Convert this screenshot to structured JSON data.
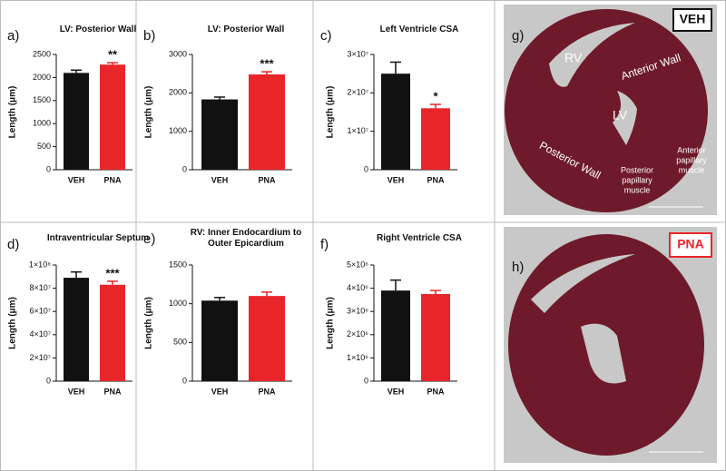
{
  "chart_data": [
    {
      "type": "bar",
      "panel_label": "a)",
      "title": "LV: Posterior Wall",
      "y_label": "Length (μm)",
      "categories": [
        "VEH",
        "PNA"
      ],
      "values": [
        2100,
        2280
      ],
      "errors": [
        60,
        40
      ],
      "colors": [
        "#111111",
        "#e8262a"
      ],
      "value_annotations": [
        null,
        "**"
      ],
      "ylim": [
        0,
        2500
      ],
      "yticks": [
        0,
        500,
        1000,
        1500,
        2000,
        2500
      ]
    },
    {
      "type": "bar",
      "panel_label": "b)",
      "title": "LV: Posterior Wall",
      "y_label": "Length (μm)",
      "categories": [
        "VEH",
        "PNA"
      ],
      "values": [
        1830,
        2480
      ],
      "errors": [
        60,
        70
      ],
      "colors": [
        "#111111",
        "#e8262a"
      ],
      "value_annotations": [
        null,
        "***"
      ],
      "ylim": [
        0,
        3000
      ],
      "yticks": [
        0,
        1000,
        2000,
        3000
      ]
    },
    {
      "type": "bar",
      "panel_label": "c)",
      "title": "Left Ventricle CSA",
      "y_label": "Length (μm)",
      "categories": [
        "VEH",
        "PNA"
      ],
      "values": [
        25000000,
        16000000
      ],
      "errors": [
        3000000,
        1000000
      ],
      "colors": [
        "#111111",
        "#e8262a"
      ],
      "value_annotations": [
        null,
        "*"
      ],
      "ylim": [
        0,
        30000000
      ],
      "yticks": [
        0,
        {
          "value": 10000000,
          "label": "1×10⁷"
        },
        {
          "value": 20000000,
          "label": "2×10⁷"
        },
        {
          "value": 30000000,
          "label": "3×10⁷"
        }
      ]
    },
    {
      "type": "bar",
      "panel_label": "d)",
      "title": "Intraventricular Septum",
      "y_label": "Length (μm)",
      "categories": [
        "VEH",
        "PNA"
      ],
      "values": [
        89000000,
        83000000
      ],
      "errors": [
        5000000,
        3000000
      ],
      "colors": [
        "#111111",
        "#e8262a"
      ],
      "value_annotations": [
        null,
        "***"
      ],
      "ylim": [
        0,
        100000000
      ],
      "yticks": [
        0,
        {
          "value": 20000000,
          "label": "2×10⁷"
        },
        {
          "value": 40000000,
          "label": "4×10⁷"
        },
        {
          "value": 60000000,
          "label": "6×10⁷"
        },
        {
          "value": 80000000,
          "label": "8×10⁷"
        },
        {
          "value": 100000000,
          "label": "1×10⁸"
        }
      ]
    },
    {
      "type": "bar",
      "panel_label": "e)",
      "title": "RV: Inner Endocardium to Outer Epicardium",
      "y_label": "Length (μm)",
      "categories": [
        "VEH",
        "PNA"
      ],
      "values": [
        1040,
        1100
      ],
      "errors": [
        40,
        50
      ],
      "colors": [
        "#111111",
        "#e8262a"
      ],
      "ylim": [
        0,
        1500
      ],
      "yticks": [
        0,
        500,
        1000,
        1500
      ]
    },
    {
      "type": "bar",
      "panel_label": "f)",
      "title": "Right Ventricle CSA",
      "y_label": "Length (μm)",
      "categories": [
        "VEH",
        "PNA"
      ],
      "values": [
        3900000,
        3750000
      ],
      "errors": [
        450000,
        150000
      ],
      "colors": [
        "#111111",
        "#e8262a"
      ],
      "ylim": [
        0,
        5000000
      ],
      "yticks": [
        0,
        {
          "value": 1000000,
          "label": "1×10⁶"
        },
        {
          "value": 2000000,
          "label": "2×10⁶"
        },
        {
          "value": 3000000,
          "label": "3×10⁶"
        },
        {
          "value": 4000000,
          "label": "4×10⁶"
        },
        {
          "value": 5000000,
          "label": "5×10⁶"
        }
      ]
    }
  ],
  "images": [
    {
      "panel_label": "g)",
      "group": "VEH",
      "labels": [
        "RV",
        "Anterior Wall",
        "LV",
        "Posterior Wall"
      ],
      "posterior_muscle": [
        "Posterior",
        "papillary",
        "muscle"
      ],
      "anterior_muscle": [
        "Anterior",
        "papillary",
        "muscle"
      ]
    },
    {
      "panel_label": "h)",
      "group": "PNA"
    }
  ]
}
